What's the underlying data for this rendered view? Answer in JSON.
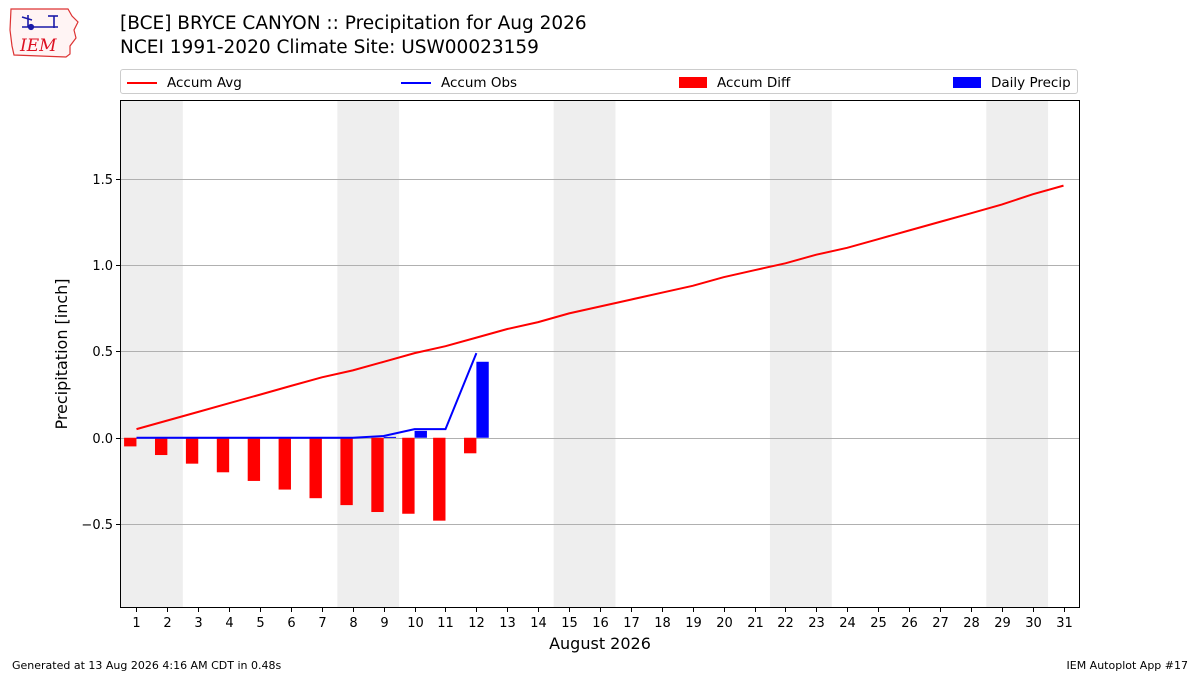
{
  "header": {
    "logo_text": "IEM",
    "title_line1": "[BCE] BRYCE CANYON :: Precipitation for Aug 2026",
    "title_line2": "NCEI 1991-2020 Climate Site: USW00023159"
  },
  "footer": {
    "generated": "Generated at 13 Aug 2026 4:16 AM CDT in 0.48s",
    "app": "IEM Autoplot App #17"
  },
  "colors": {
    "accum_avg": "#ff0000",
    "accum_obs": "#0000ff",
    "accum_diff": "#ff0000",
    "daily_precip": "#0000ff",
    "weekend_band": "#eeeeee",
    "grid": "#b0b0b0"
  },
  "chart_data": {
    "type": "bar",
    "title": "[BCE] BRYCE CANYON :: Precipitation for Aug 2026",
    "subtitle": "NCEI 1991-2020 Climate Site: USW00023159",
    "xlabel": "August 2026",
    "ylabel": "Precipitation [inch]",
    "xlim": [
      0.5,
      31.5
    ],
    "ylim": [
      -0.98,
      1.95
    ],
    "y_ticks": [
      -0.5,
      0.0,
      0.5,
      1.0,
      1.5
    ],
    "y_tick_labels": [
      "−0.5",
      "0.0",
      "0.5",
      "1.0",
      "1.5"
    ],
    "x_ticks": [
      1,
      2,
      3,
      4,
      5,
      6,
      7,
      8,
      9,
      10,
      11,
      12,
      13,
      14,
      15,
      16,
      17,
      18,
      19,
      20,
      21,
      22,
      23,
      24,
      25,
      26,
      27,
      28,
      29,
      30,
      31
    ],
    "x_tick_labels": [
      "1",
      "2",
      "3",
      "4",
      "5",
      "6",
      "7",
      "8",
      "9",
      "10",
      "11",
      "12",
      "13",
      "14",
      "15",
      "16",
      "17",
      "18",
      "19",
      "20",
      "21",
      "22",
      "23",
      "24",
      "25",
      "26",
      "27",
      "28",
      "29",
      "30",
      "31"
    ],
    "grid": "horizontal",
    "legend_placement": "top",
    "weekend_days": [
      1,
      2,
      8,
      9,
      15,
      16,
      22,
      23,
      29,
      30
    ],
    "series": [
      {
        "name": "Accum Avg",
        "kind": "line",
        "x": [
          1,
          2,
          3,
          4,
          5,
          6,
          7,
          8,
          9,
          10,
          11,
          12,
          13,
          14,
          15,
          16,
          17,
          18,
          19,
          20,
          21,
          22,
          23,
          24,
          25,
          26,
          27,
          28,
          29,
          30,
          31
        ],
        "values": [
          0.05,
          0.1,
          0.15,
          0.2,
          0.25,
          0.3,
          0.35,
          0.39,
          0.44,
          0.49,
          0.53,
          0.58,
          0.63,
          0.67,
          0.72,
          0.76,
          0.8,
          0.84,
          0.88,
          0.93,
          0.97,
          1.01,
          1.06,
          1.1,
          1.15,
          1.2,
          1.25,
          1.3,
          1.35,
          1.41,
          1.46
        ]
      },
      {
        "name": "Accum Obs",
        "kind": "line",
        "x": [
          1,
          2,
          3,
          4,
          5,
          6,
          7,
          8,
          9,
          10,
          11,
          12
        ],
        "values": [
          0.0,
          0.0,
          0.0,
          0.0,
          0.0,
          0.0,
          0.0,
          0.0,
          0.01,
          0.05,
          0.05,
          0.49
        ]
      },
      {
        "name": "Accum Diff",
        "kind": "bar",
        "x": [
          1,
          2,
          3,
          4,
          5,
          6,
          7,
          8,
          9,
          10,
          11,
          12
        ],
        "values": [
          -0.05,
          -0.1,
          -0.15,
          -0.2,
          -0.25,
          -0.3,
          -0.35,
          -0.39,
          -0.43,
          -0.44,
          -0.48,
          -0.09
        ]
      },
      {
        "name": "Daily Precip",
        "kind": "bar",
        "x": [
          9,
          10,
          11,
          12
        ],
        "values": [
          0.005,
          0.04,
          0.0,
          0.44
        ]
      }
    ]
  }
}
